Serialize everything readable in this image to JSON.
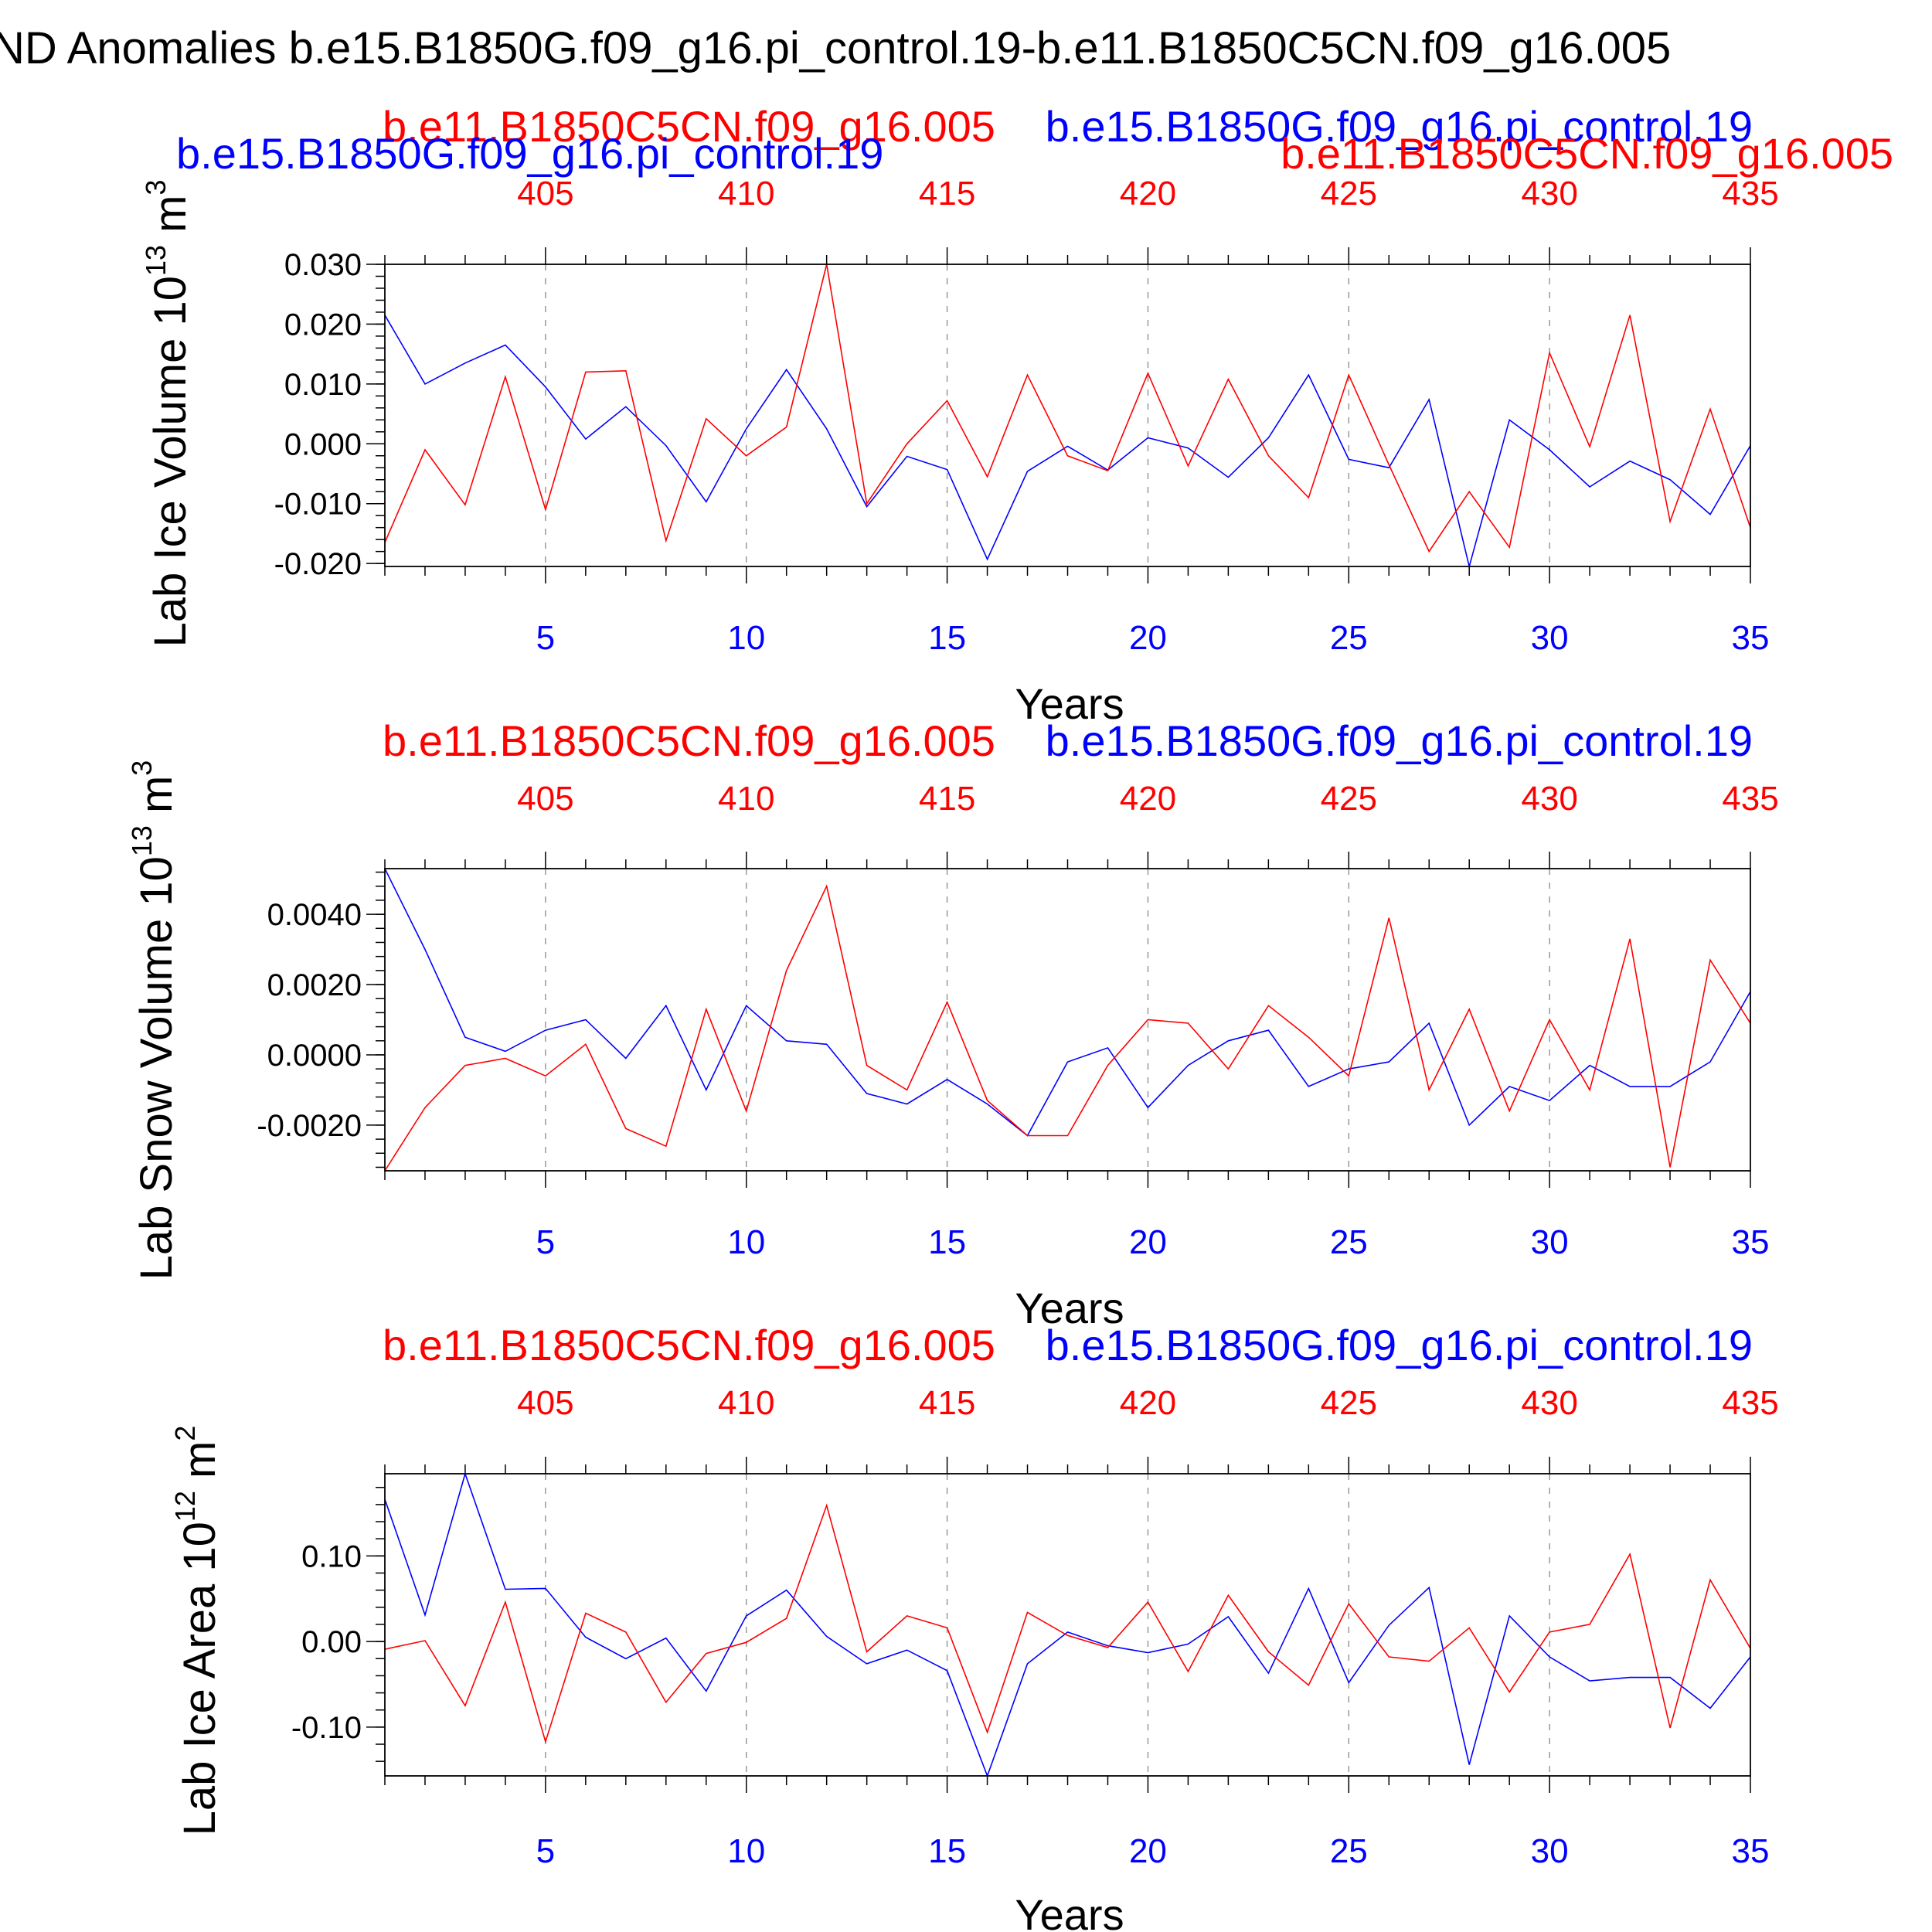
{
  "page_title": "ND Anomalies b.e15.B1850G.f09_g16.pi_control.19-b.e11.B1850C5CN.f09_g16.005",
  "colors": {
    "series_1": "#0000ff",
    "series_2": "#ff0000",
    "axis": "#000000",
    "grid": "#999999"
  },
  "chart_data": [
    {
      "type": "line",
      "ylabel": "Lab Ice Volume 10",
      "ylabel_exp": "13",
      "ylabel_unit": " m",
      "ylabel_unit_exp": "3",
      "xlabel": "Years",
      "top_left_label": "b.e11.B1850C5CN.f09_g16.005",
      "top_right_label": "b.e15.B1850G.f09_g16.pi_control.19",
      "extra_labels": [
        "b.e15.B1850G.f09_g16.pi_control.19",
        "b.e11.B1850C5CN.f09_g16.005"
      ],
      "xlim": [
        1,
        35
      ],
      "ylim": [
        -0.0205,
        0.03
      ],
      "x_ticks": [
        5,
        10,
        15,
        20,
        25,
        30,
        35
      ],
      "top_ticks": [
        "405",
        "410",
        "415",
        "420",
        "425",
        "430",
        "435"
      ],
      "y_ticks": [
        -0.02,
        -0.01,
        0.0,
        0.01,
        0.02,
        0.03
      ],
      "y_tick_labels": [
        "-0.020",
        "-0.010",
        "0.000",
        "0.010",
        "0.020",
        "0.030"
      ],
      "x": [
        1,
        2,
        3,
        4,
        5,
        6,
        7,
        8,
        9,
        10,
        11,
        12,
        13,
        14,
        15,
        16,
        17,
        18,
        19,
        20,
        21,
        22,
        23,
        24,
        25,
        26,
        27,
        28,
        29,
        30,
        31,
        32,
        33,
        34,
        35
      ],
      "series": [
        {
          "name": "b.e15.B1850G.f09_g16.pi_control.19",
          "color": "#0000ff",
          "values": [
            0.0215,
            0.01,
            0.0135,
            0.0165,
            0.0095,
            0.0008,
            0.0062,
            -0.0003,
            -0.0097,
            0.0025,
            0.0124,
            0.0025,
            -0.0105,
            -0.0021,
            -0.0043,
            -0.0193,
            -0.0046,
            -0.0004,
            -0.0044,
            0.001,
            -0.0007,
            -0.0056,
            0.001,
            0.0115,
            -0.0026,
            -0.004,
            0.0074,
            -0.0205,
            0.004,
            -0.001,
            -0.0072,
            -0.0029,
            -0.006,
            -0.0118,
            -0.0003
          ]
        },
        {
          "name": "b.e11.B1850C5CN.f09_g16.005",
          "color": "#ff0000",
          "values": [
            -0.0165,
            -0.001,
            -0.0102,
            0.0112,
            -0.011,
            0.012,
            0.0122,
            -0.0162,
            0.0042,
            -0.002,
            0.0028,
            0.03,
            -0.01,
            0.0,
            0.0072,
            -0.0055,
            0.0115,
            -0.002,
            -0.0045,
            0.0118,
            -0.0037,
            0.0108,
            -0.002,
            -0.009,
            0.0115,
            -0.0035,
            -0.018,
            -0.008,
            -0.0173,
            0.0152,
            -0.0005,
            0.0215,
            -0.013,
            0.0058,
            -0.014
          ]
        }
      ]
    },
    {
      "type": "line",
      "ylabel": "Lab Snow Volume 10",
      "ylabel_exp": "13",
      "ylabel_unit": " m",
      "ylabel_unit_exp": "3",
      "xlabel": "Years",
      "top_left_label": "b.e11.B1850C5CN.f09_g16.005",
      "top_right_label": "b.e15.B1850G.f09_g16.pi_control.19",
      "extra_labels": [],
      "xlim": [
        1,
        35
      ],
      "ylim": [
        -0.0033,
        0.0053
      ],
      "x_ticks": [
        5,
        10,
        15,
        20,
        25,
        30,
        35
      ],
      "top_ticks": [
        "405",
        "410",
        "415",
        "420",
        "425",
        "430",
        "435"
      ],
      "y_ticks": [
        -0.002,
        0.0,
        0.002,
        0.004
      ],
      "y_tick_labels": [
        "-0.0020",
        "0.0000",
        "0.0020",
        "0.0040"
      ],
      "x": [
        1,
        2,
        3,
        4,
        5,
        6,
        7,
        8,
        9,
        10,
        11,
        12,
        13,
        14,
        15,
        16,
        17,
        18,
        19,
        20,
        21,
        22,
        23,
        24,
        25,
        26,
        27,
        28,
        29,
        30,
        31,
        32,
        33,
        34,
        35
      ],
      "series": [
        {
          "name": "b.e15.B1850G.f09_g16.pi_control.19",
          "color": "#0000ff",
          "values": [
            0.0053,
            0.003,
            0.0005,
            0.0001,
            0.0007,
            0.001,
            -0.0001,
            0.0014,
            -0.001,
            0.0014,
            0.0004,
            0.0003,
            -0.0011,
            -0.0014,
            -0.0007,
            -0.0014,
            -0.0023,
            -0.0002,
            0.0002,
            -0.0015,
            -0.0003,
            0.0004,
            0.0007,
            -0.0009,
            -0.0004,
            -0.0002,
            0.0009,
            -0.002,
            -0.0009,
            -0.0013,
            -0.0003,
            -0.0009,
            -0.0009,
            -0.0002,
            0.0018
          ]
        },
        {
          "name": "b.e11.B1850C5CN.f09_g16.005",
          "color": "#ff0000",
          "values": [
            -0.0033,
            -0.0015,
            -0.0003,
            -0.0001,
            -0.0006,
            0.0003,
            -0.0021,
            -0.0026,
            0.0013,
            -0.0016,
            0.0024,
            0.0048,
            -0.0003,
            -0.001,
            0.0015,
            -0.0013,
            -0.0023,
            -0.0023,
            -0.0003,
            0.001,
            0.0009,
            -0.0004,
            0.0014,
            0.0005,
            -0.0006,
            0.0039,
            -0.001,
            0.0013,
            -0.0016,
            0.001,
            -0.001,
            0.0033,
            -0.0032,
            0.0027,
            0.0009
          ]
        }
      ]
    },
    {
      "type": "line",
      "ylabel": "Lab Ice Area 10",
      "ylabel_exp": "12",
      "ylabel_unit": " m",
      "ylabel_unit_exp": "2",
      "xlabel": "Years",
      "top_left_label": "b.e11.B1850C5CN.f09_g16.005",
      "top_right_label": "b.e15.B1850G.f09_g16.pi_control.19",
      "extra_labels": [],
      "xlim": [
        1,
        35
      ],
      "ylim": [
        -0.157,
        0.196
      ],
      "x_ticks": [
        5,
        10,
        15,
        20,
        25,
        30,
        35
      ],
      "top_ticks": [
        "405",
        "410",
        "415",
        "420",
        "425",
        "430",
        "435"
      ],
      "y_ticks": [
        -0.1,
        0.0,
        0.1
      ],
      "y_tick_labels": [
        "-0.10",
        "0.00",
        "0.10"
      ],
      "x": [
        1,
        2,
        3,
        4,
        5,
        6,
        7,
        8,
        9,
        10,
        11,
        12,
        13,
        14,
        15,
        16,
        17,
        18,
        19,
        20,
        21,
        22,
        23,
        24,
        25,
        26,
        27,
        28,
        29,
        30,
        31,
        32,
        33,
        34,
        35
      ],
      "series": [
        {
          "name": "b.e15.B1850G.f09_g16.pi_control.19",
          "color": "#0000ff",
          "values": [
            0.166,
            0.031,
            0.196,
            0.061,
            0.062,
            0.005,
            -0.02,
            0.004,
            -0.058,
            0.03,
            0.06,
            0.006,
            -0.026,
            -0.01,
            -0.034,
            -0.157,
            -0.026,
            0.011,
            -0.005,
            -0.013,
            -0.003,
            0.029,
            -0.037,
            0.062,
            -0.048,
            0.019,
            0.063,
            -0.144,
            0.03,
            -0.018,
            -0.046,
            -0.042,
            -0.042,
            -0.078,
            -0.018
          ]
        },
        {
          "name": "b.e11.B1850C5CN.f09_g16.005",
          "color": "#ff0000",
          "values": [
            -0.009,
            0.001,
            -0.075,
            0.046,
            -0.117,
            0.033,
            0.011,
            -0.071,
            -0.014,
            -0.001,
            0.027,
            0.159,
            -0.012,
            0.03,
            0.016,
            -0.106,
            0.034,
            0.007,
            -0.007,
            0.046,
            -0.035,
            0.054,
            -0.012,
            -0.051,
            0.044,
            -0.018,
            -0.023,
            0.016,
            -0.059,
            0.011,
            0.02,
            0.102,
            -0.101,
            0.072,
            -0.008
          ]
        }
      ]
    }
  ]
}
